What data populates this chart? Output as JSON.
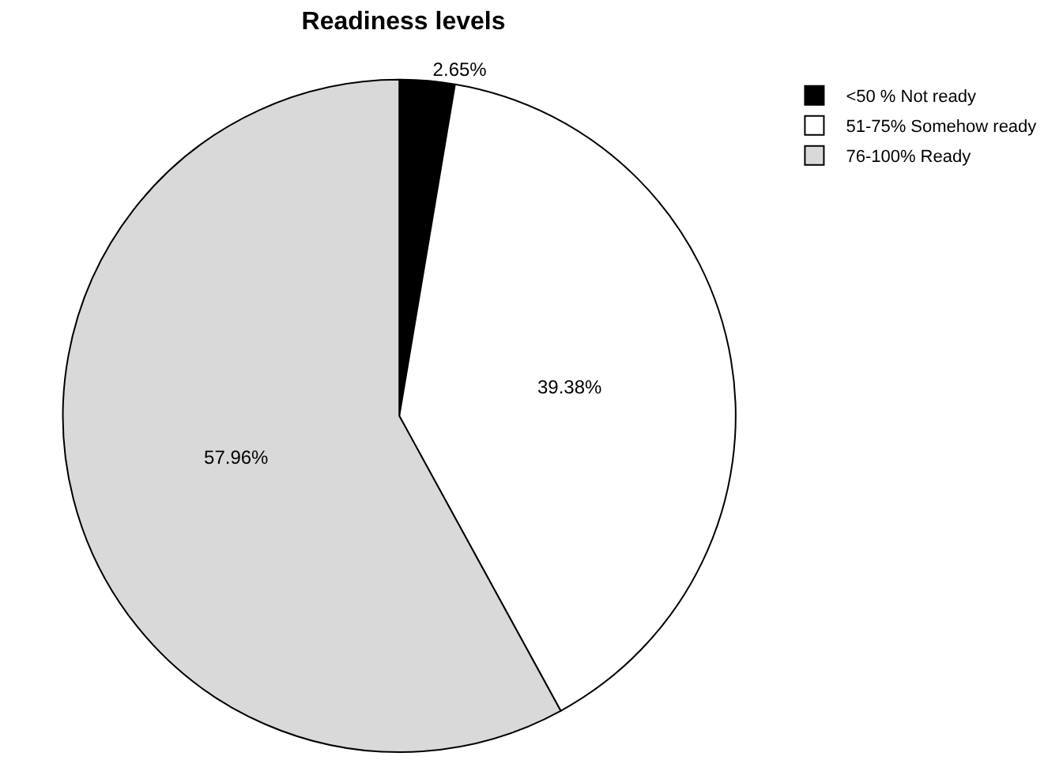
{
  "chart_data": {
    "type": "pie",
    "title": "Readiness levels",
    "categories": [
      "<50 % Not ready",
      "51-75% Somehow ready",
      "76-100% Ready"
    ],
    "values": [
      2.65,
      39.38,
      57.96
    ],
    "colors": [
      "#000000",
      "#ffffff",
      "#d9d9d9"
    ],
    "value_labels": [
      "2.65%",
      "39.38%",
      "57.96%"
    ],
    "legend": "top right"
  }
}
